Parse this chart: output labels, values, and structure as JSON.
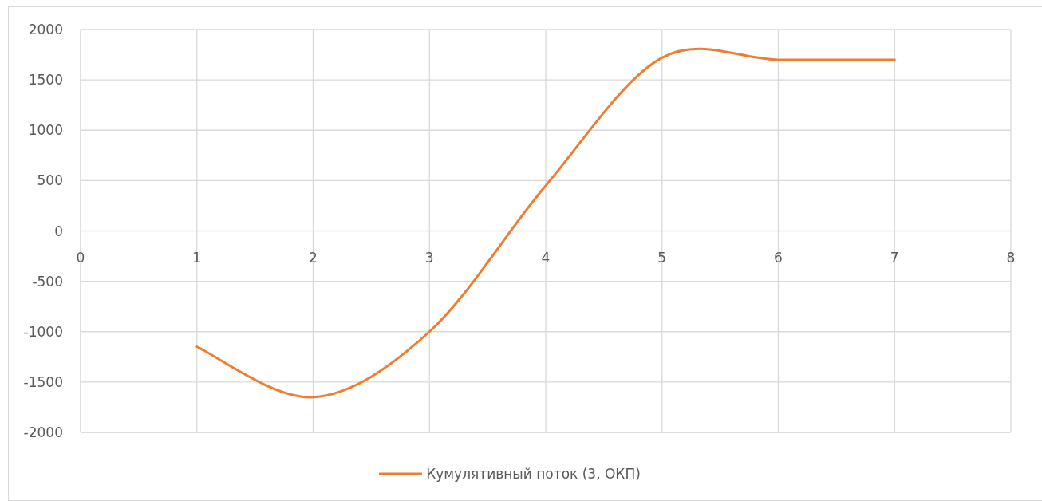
{
  "chart_data": {
    "type": "line",
    "x": [
      1,
      2,
      3,
      4,
      5,
      6,
      7
    ],
    "series": [
      {
        "name": "Кумулятивный поток (3, ОКП)",
        "color": "#ed7d31",
        "values": [
          -1150,
          -1650,
          -1000,
          450,
          1720,
          1700,
          1700
        ]
      }
    ],
    "xlim": [
      0,
      8
    ],
    "xticks": [
      0,
      1,
      2,
      3,
      4,
      5,
      6,
      7,
      8
    ],
    "ylim": [
      -2000,
      2000
    ],
    "yticks": [
      -2000,
      -1500,
      -1000,
      -500,
      0,
      500,
      1000,
      1500,
      2000
    ],
    "grid": true,
    "legend": "bottom",
    "marker": "none",
    "line_style": "solid"
  }
}
